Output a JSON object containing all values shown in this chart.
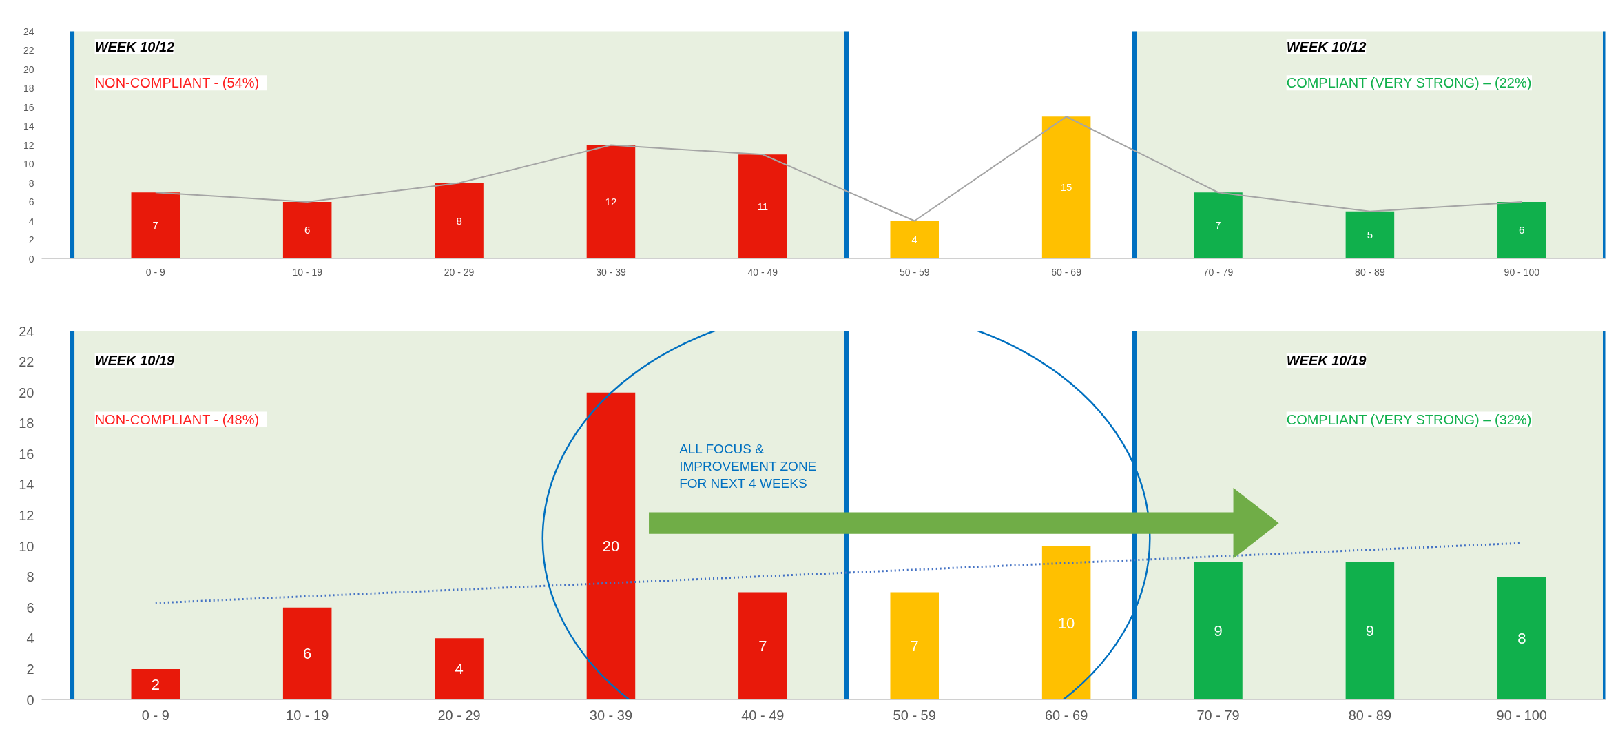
{
  "chart_data": [
    {
      "type": "bar",
      "categories": [
        "0 - 9",
        "10 - 19",
        "20 - 29",
        "30 - 39",
        "40 - 49",
        "50 - 59",
        "60 - 69",
        "70 - 79",
        "80 - 89",
        "90 - 100"
      ],
      "series": [
        {
          "values": [
            7,
            6,
            8,
            12,
            11,
            4,
            15,
            7,
            5,
            6
          ],
          "value_labels": [
            "7",
            "6",
            "8",
            "12",
            "11",
            "4",
            "15",
            "7",
            "5",
            "6"
          ],
          "colors": [
            "#e8190a",
            "#e8190a",
            "#e8190a",
            "#e8190a",
            "#e8190a",
            "#ffc000",
            "#ffc000",
            "#10b04c",
            "#10b04c",
            "#10b04c"
          ]
        },
        {
          "type": "line",
          "color": "#a5a5a5",
          "values": [
            7,
            6,
            8,
            12,
            11,
            4,
            15,
            7,
            5,
            6
          ]
        }
      ],
      "ylim": [
        0,
        24
      ],
      "yticks": [
        0,
        2,
        4,
        6,
        8,
        10,
        12,
        14,
        16,
        18,
        20,
        22,
        24
      ],
      "bands": [
        {
          "axis": "x",
          "from": "0 - 9",
          "to": "40 - 49",
          "color": "#e8f0e0"
        },
        {
          "axis": "x",
          "from": "70 - 79",
          "to": "90 - 100",
          "color": "#e8f0e0"
        }
      ],
      "annotations": [
        "WEEK 10/12",
        "NON-COMPLIANT  -  (54%)",
        "WEEK 10/12",
        "COMPLIANT (VERY STRONG) – (22%)"
      ]
    },
    {
      "type": "bar",
      "categories": [
        "0 - 9",
        "10 - 19",
        "20 - 29",
        "30 - 39",
        "40 - 49",
        "50 - 59",
        "60 - 69",
        "70 - 79",
        "80 - 89",
        "90 - 100"
      ],
      "series": [
        {
          "values": [
            2,
            6,
            4,
            20,
            7,
            7,
            10,
            9,
            9,
            8
          ],
          "value_labels": [
            "2",
            "6",
            "4",
            "20",
            "7",
            "7",
            "10",
            "9",
            "9",
            "8"
          ],
          "colors": [
            "#e8190a",
            "#e8190a",
            "#e8190a",
            "#e8190a",
            "#e8190a",
            "#ffc000",
            "#ffc000",
            "#10b04c",
            "#10b04c",
            "#10b04c"
          ]
        },
        {
          "type": "line",
          "color": "#4472c4",
          "line_style": "dotted",
          "x": [
            "0 - 9",
            "90 - 100"
          ],
          "values": [
            6.3,
            10.2
          ]
        }
      ],
      "ylim": [
        0,
        24
      ],
      "yticks": [
        0,
        2,
        4,
        6,
        8,
        10,
        12,
        14,
        16,
        18,
        20,
        22,
        24
      ],
      "bands": [
        {
          "axis": "x",
          "from": "0 - 9",
          "to": "40 - 49",
          "color": "#e8f0e0"
        },
        {
          "axis": "x",
          "from": "70 - 79",
          "to": "90 - 100",
          "color": "#e8f0e0"
        }
      ],
      "annotations": [
        "WEEK 10/19",
        "NON-COMPLIANT  -  (48%)",
        "WEEK 10/19",
        "COMPLIANT (VERY STRONG) – (32%)",
        "ALL FOCUS &\nIMPROVEMENT ZONE\nFOR NEXT 4 WEEKS"
      ]
    }
  ]
}
